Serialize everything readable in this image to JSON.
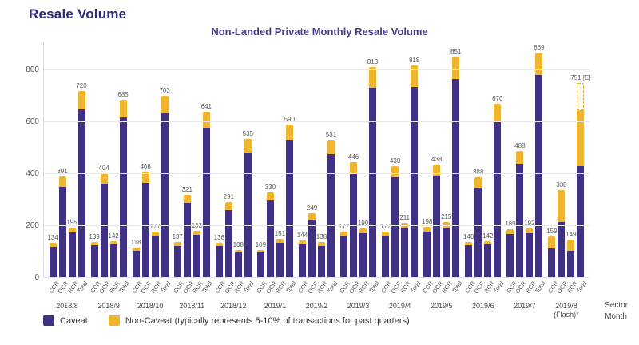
{
  "page": {
    "title": "Resale Volume"
  },
  "chart_data": {
    "type": "bar",
    "stacked": true,
    "title": "Non-Landed Private Monthly Resale Volume",
    "y_ticks": [
      0,
      200,
      400,
      600,
      800
    ],
    "ylim": [
      0,
      880
    ],
    "grid": true,
    "x_axis_title_lines": [
      "Sector",
      "Month"
    ],
    "sectors": [
      "CCR",
      "OCR",
      "RCR",
      "Total"
    ],
    "legend": [
      {
        "label": "Caveat",
        "color": "#413183"
      },
      {
        "label": "Non-Caveat (typically represents 5-10% of transactions for past quarters)",
        "color": "#F0B52F"
      }
    ],
    "colors": {
      "caveat": "#413183",
      "non_caveat": "#F0B52F",
      "estimated_border": "#E3AA35"
    },
    "note": "caveat values are the purple stack portion estimated from pixels; labeled value is the bar total; 2019/8 Total shown dashed above solid bar as estimate 751 [E]",
    "groups": [
      {
        "month": "2018/8",
        "bars": [
          {
            "sector": "CCR",
            "label": "134",
            "total": 134,
            "caveat": 121
          },
          {
            "sector": "OCR",
            "label": "391",
            "total": 391,
            "caveat": 352
          },
          {
            "sector": "RCR",
            "label": "195",
            "total": 195,
            "caveat": 176
          },
          {
            "sector": "Total",
            "label": "720",
            "total": 720,
            "caveat": 648
          }
        ]
      },
      {
        "month": "2018/9",
        "bars": [
          {
            "sector": "CCR",
            "label": "139",
            "total": 139,
            "caveat": 125
          },
          {
            "sector": "OCR",
            "label": "404",
            "total": 404,
            "caveat": 364
          },
          {
            "sector": "RCR",
            "label": "142",
            "total": 142,
            "caveat": 128
          },
          {
            "sector": "Total",
            "label": "685",
            "total": 685,
            "caveat": 617
          }
        ]
      },
      {
        "month": "2018/10",
        "bars": [
          {
            "sector": "CCR",
            "label": "118",
            "total": 118,
            "caveat": 106
          },
          {
            "sector": "OCR",
            "label": "408",
            "total": 408,
            "caveat": 367
          },
          {
            "sector": "RCR",
            "label": "177",
            "total": 177,
            "caveat": 159
          },
          {
            "sector": "Total",
            "label": "703",
            "total": 703,
            "caveat": 633
          }
        ]
      },
      {
        "month": "2018/11",
        "bars": [
          {
            "sector": "CCR",
            "label": "137",
            "total": 137,
            "caveat": 123
          },
          {
            "sector": "OCR",
            "label": "321",
            "total": 321,
            "caveat": 289
          },
          {
            "sector": "RCR",
            "label": "183",
            "total": 183,
            "caveat": 165
          },
          {
            "sector": "Total",
            "label": "641",
            "total": 641,
            "caveat": 577
          }
        ]
      },
      {
        "month": "2018/12",
        "bars": [
          {
            "sector": "CCR",
            "label": "136",
            "total": 136,
            "caveat": 122
          },
          {
            "sector": "OCR",
            "label": "291",
            "total": 291,
            "caveat": 262
          },
          {
            "sector": "RCR",
            "label": "108",
            "total": 108,
            "caveat": 97
          },
          {
            "sector": "Total",
            "label": "535",
            "total": 535,
            "caveat": 482
          }
        ]
      },
      {
        "month": "2019/1",
        "bars": [
          {
            "sector": "CCR",
            "label": "109",
            "total": 109,
            "caveat": 98
          },
          {
            "sector": "OCR",
            "label": "330",
            "total": 330,
            "caveat": 297
          },
          {
            "sector": "RCR",
            "label": "151",
            "total": 151,
            "caveat": 136
          },
          {
            "sector": "Total",
            "label": "590",
            "total": 590,
            "caveat": 531
          }
        ]
      },
      {
        "month": "2019/2",
        "bars": [
          {
            "sector": "CCR",
            "label": "144",
            "total": 144,
            "caveat": 130
          },
          {
            "sector": "OCR",
            "label": "249",
            "total": 249,
            "caveat": 224
          },
          {
            "sector": "RCR",
            "label": "138",
            "total": 138,
            "caveat": 124
          },
          {
            "sector": "Total",
            "label": "531",
            "total": 531,
            "caveat": 478
          }
        ]
      },
      {
        "month": "2019/3",
        "bars": [
          {
            "sector": "CCR",
            "label": "177",
            "total": 177,
            "caveat": 159
          },
          {
            "sector": "OCR",
            "label": "446",
            "total": 446,
            "caveat": 401
          },
          {
            "sector": "RCR",
            "label": "190",
            "total": 190,
            "caveat": 171
          },
          {
            "sector": "Total",
            "label": "813",
            "total": 813,
            "caveat": 732
          }
        ]
      },
      {
        "month": "2019/4",
        "bars": [
          {
            "sector": "CCR",
            "label": "177",
            "total": 177,
            "caveat": 159
          },
          {
            "sector": "OCR",
            "label": "430",
            "total": 430,
            "caveat": 387
          },
          {
            "sector": "RCR",
            "label": "211",
            "total": 211,
            "caveat": 190
          },
          {
            "sector": "Total",
            "label": "818",
            "total": 818,
            "caveat": 736
          }
        ]
      },
      {
        "month": "2019/5",
        "bars": [
          {
            "sector": "CCR",
            "label": "198",
            "total": 198,
            "caveat": 178
          },
          {
            "sector": "OCR",
            "label": "438",
            "total": 438,
            "caveat": 394
          },
          {
            "sector": "RCR",
            "label": "215",
            "total": 215,
            "caveat": 194
          },
          {
            "sector": "Total",
            "label": "851",
            "total": 851,
            "caveat": 766
          }
        ]
      },
      {
        "month": "2019/6",
        "bars": [
          {
            "sector": "CCR",
            "label": "140",
            "total": 140,
            "caveat": 126
          },
          {
            "sector": "OCR",
            "label": "388",
            "total": 388,
            "caveat": 349
          },
          {
            "sector": "RCR",
            "label": "142",
            "total": 142,
            "caveat": 128
          },
          {
            "sector": "Total",
            "label": "670",
            "total": 670,
            "caveat": 603
          }
        ]
      },
      {
        "month": "2019/7",
        "bars": [
          {
            "sector": "CCR",
            "label": "189",
            "total": 189,
            "caveat": 170
          },
          {
            "sector": "OCR",
            "label": "488",
            "total": 488,
            "caveat": 439
          },
          {
            "sector": "RCR",
            "label": "192",
            "total": 192,
            "caveat": 173
          },
          {
            "sector": "Total",
            "label": "869",
            "total": 869,
            "caveat": 782
          }
        ]
      },
      {
        "month": "2019/8 (Flash)*",
        "month_lines": [
          "2019/8",
          "(Flash)*"
        ],
        "bars": [
          {
            "sector": "CCR",
            "label": "159",
            "total": 159,
            "caveat": 115
          },
          {
            "sector": "OCR",
            "label": "338",
            "total": 338,
            "caveat": 215
          },
          {
            "sector": "RCR",
            "label": "149",
            "total": 149,
            "caveat": 105
          },
          {
            "sector": "Total",
            "label": "751 [E]",
            "total": 751,
            "solid": 646,
            "caveat": 430,
            "estimated": true
          }
        ]
      }
    ]
  }
}
